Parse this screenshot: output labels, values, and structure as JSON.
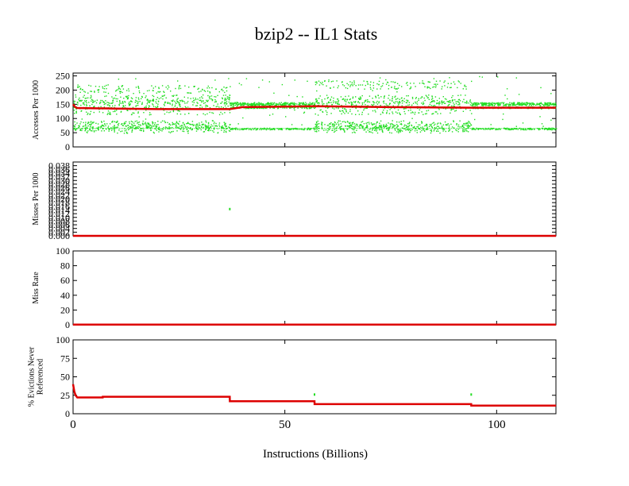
{
  "chart_data": {
    "type": "scatter",
    "title": "bzip2 -- IL1  Stats",
    "xlabel": "Instructions (Billions)",
    "xlim": [
      0,
      114
    ],
    "xticks": [
      0,
      50,
      100
    ],
    "colors": {
      "points": "#22dd22",
      "average": "#dd0000"
    },
    "panels": [
      {
        "ylabel": [
          "Accesses Per 1000"
        ],
        "ylim": [
          0,
          260
        ],
        "yticks": [
          "0",
          "50",
          "100",
          "150",
          "200",
          "250"
        ],
        "ytick_values": [
          0,
          50,
          100,
          150,
          200,
          250
        ],
        "average_line": {
          "x": [
            0,
            0.5,
            1,
            10,
            20,
            37,
            40,
            57,
            75,
            94,
            114
          ],
          "y": [
            150,
            140,
            137,
            135,
            133,
            133,
            140,
            143,
            140,
            138,
            138
          ]
        },
        "scatter_bands": [
          {
            "x0": 0,
            "x1": 37,
            "levels": [
              65,
              70,
              75,
              80,
              130,
              150,
              160,
              170,
              205
            ],
            "spread": 30
          },
          {
            "x0": 37,
            "x1": 57,
            "levels": [
              65,
              140,
              150,
              155
            ],
            "spread": 6
          },
          {
            "x0": 57,
            "x1": 94,
            "levels": [
              65,
              70,
              75,
              80,
              130,
              150,
              160,
              170,
              220
            ],
            "spread": 30
          },
          {
            "x0": 94,
            "x1": 114,
            "levels": [
              65,
              140,
              150,
              155
            ],
            "spread": 6
          }
        ]
      },
      {
        "ylabel": [
          "Misses Per 1000"
        ],
        "ylim": [
          0,
          0.04
        ],
        "yticks": [
          "0.000",
          "0.002",
          "0.004",
          "0.006",
          "0.008",
          "0.010",
          "0.012",
          "0.014",
          "0.016",
          "0.018",
          "0.020",
          "0.022",
          "0.024",
          "0.026",
          "0.028",
          "0.030",
          "0.032",
          "0.034",
          "0.036",
          "0.038"
        ],
        "ytick_values": [
          0.0,
          0.002,
          0.004,
          0.006,
          0.008,
          0.01,
          0.012,
          0.014,
          0.016,
          0.018,
          0.02,
          0.022,
          0.024,
          0.026,
          0.028,
          0.03,
          0.032,
          0.034,
          0.036,
          0.038
        ],
        "average_line": {
          "x": [
            0,
            114
          ],
          "y": [
            0.0,
            0.0
          ]
        },
        "points": [
          {
            "x": 37,
            "y": 0.0145
          }
        ]
      },
      {
        "ylabel": [
          "Miss Rate"
        ],
        "ylim": [
          0,
          100
        ],
        "yticks": [
          "0",
          "20",
          "40",
          "60",
          "80",
          "100"
        ],
        "ytick_values": [
          0,
          20,
          40,
          60,
          80,
          100
        ],
        "average_line": {
          "x": [
            0,
            114
          ],
          "y": [
            0.2,
            0.2
          ]
        }
      },
      {
        "ylabel": [
          "% Evictions Never",
          "Referenced"
        ],
        "ylim": [
          0,
          100
        ],
        "yticks": [
          "0",
          "25",
          "50",
          "75",
          "100"
        ],
        "ytick_values": [
          0,
          25,
          50,
          75,
          100
        ],
        "average_line": {
          "x": [
            0,
            0.3,
            0.6,
            1,
            7,
            7.01,
            37,
            37.01,
            57,
            57.01,
            94,
            94.01,
            114
          ],
          "y": [
            40,
            30,
            25,
            22,
            22,
            23,
            23,
            17,
            17,
            13,
            13,
            11,
            11
          ]
        },
        "points": [
          {
            "x": 57,
            "y": 26
          },
          {
            "x": 94,
            "y": 26
          }
        ]
      }
    ]
  }
}
